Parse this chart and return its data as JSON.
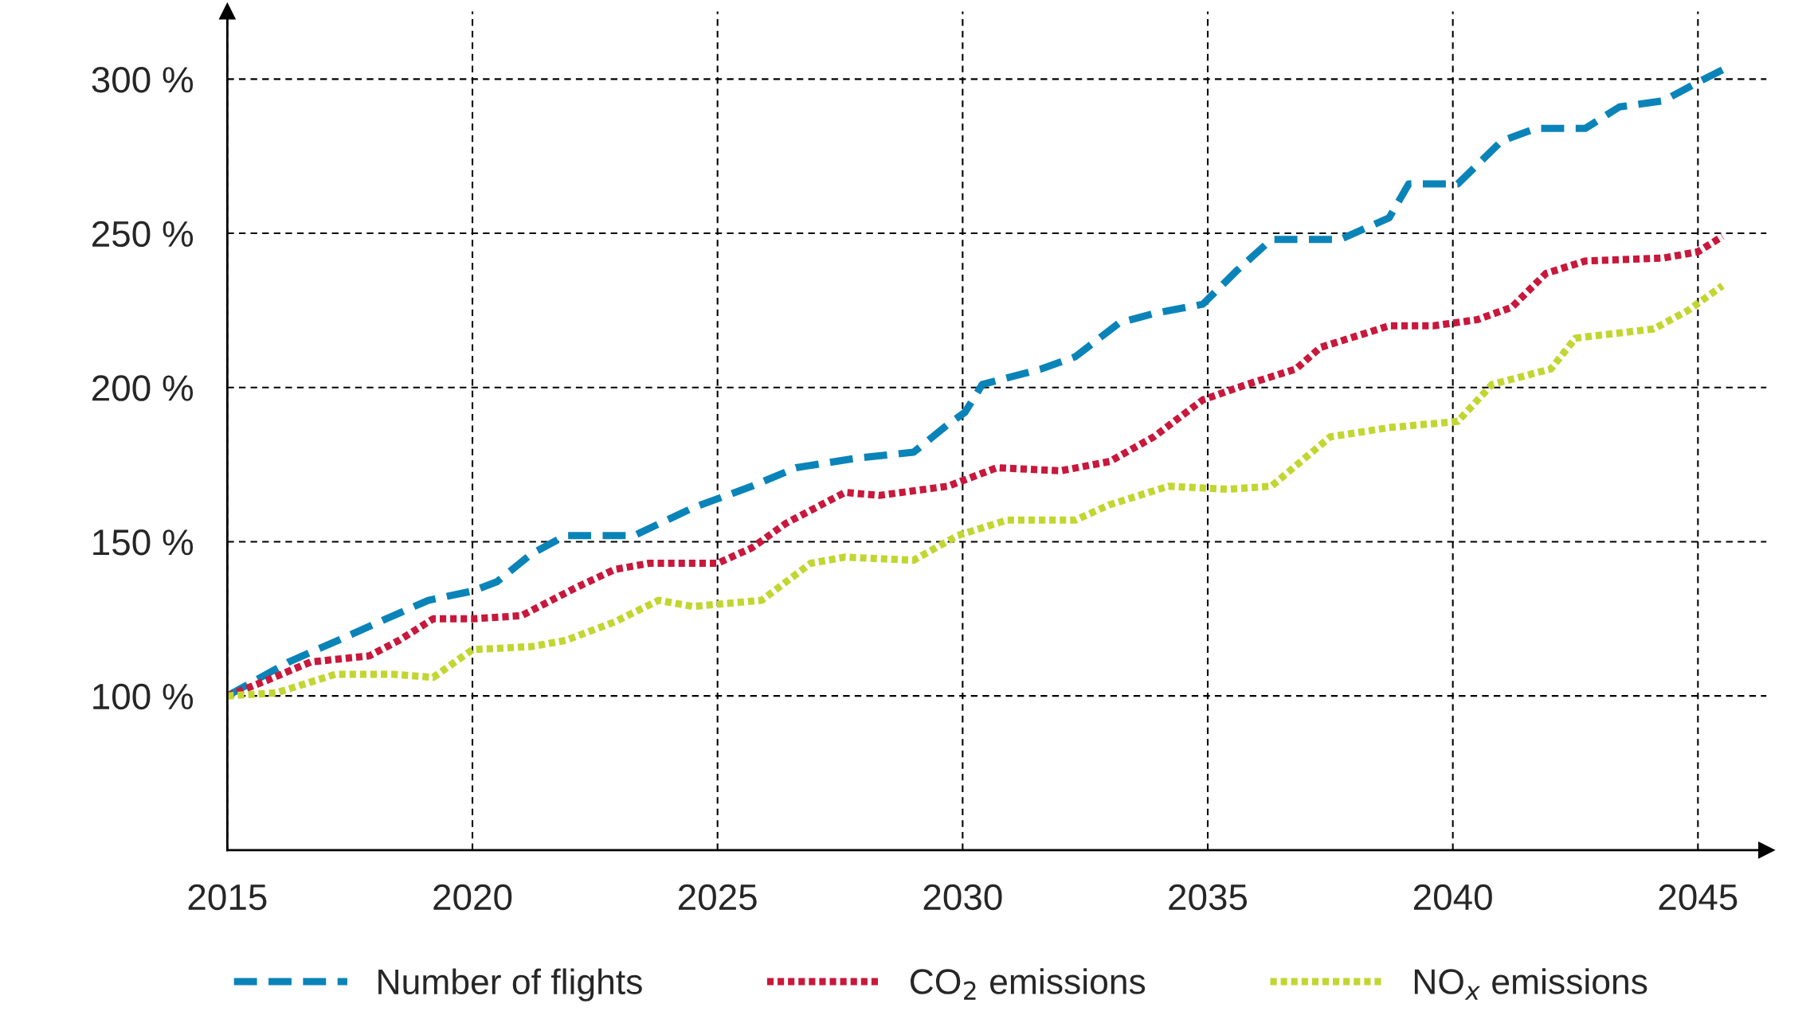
{
  "chart_data": {
    "type": "line",
    "xlim": [
      2015,
      2046.4
    ],
    "ylim": [
      50,
      322
    ],
    "xticks": [
      2015,
      2020,
      2025,
      2030,
      2035,
      2040,
      2045
    ],
    "yticks": [
      {
        "value": 100,
        "label": "100 %"
      },
      {
        "value": 150,
        "label": "150 %"
      },
      {
        "value": 200,
        "label": "200 %"
      },
      {
        "value": 250,
        "label": "250 %"
      },
      {
        "value": 300,
        "label": "300 %"
      }
    ],
    "grid": true,
    "legend": "bottom",
    "marker": "none",
    "series": [
      {
        "name": "Number of flights",
        "color": "#0a84b8",
        "line_style": "dashed",
        "x": [
          2015,
          2016.25,
          2017.4,
          2018.1,
          2019.1,
          2020,
          2020.5,
          2021.2,
          2021.9,
          2023.3,
          2024.5,
          2025.7,
          2026.6,
          2027.8,
          2029,
          2029.7,
          2030.05,
          2030.4,
          2031.6,
          2032.3,
          2033.2,
          2033.9,
          2034.9,
          2035.6,
          2036.3,
          2037.7,
          2038.7,
          2039.1,
          2040.1,
          2041,
          2041.7,
          2042.7,
          2043.4,
          2044.3,
          2045,
          2045.5
        ],
        "values": [
          100,
          111,
          119,
          124,
          131,
          134,
          137,
          146,
          152,
          152,
          161,
          168,
          174,
          177,
          179,
          188,
          192,
          201,
          206,
          210,
          221,
          224,
          227,
          238,
          248,
          248,
          255,
          266,
          266,
          280,
          284,
          284,
          291,
          293,
          299,
          303
        ]
      },
      {
        "name": "CO$_{2}$ emissions",
        "color": "#c8183c",
        "line_style": "dotted",
        "x": [
          2015,
          2015.8,
          2016.7,
          2017.9,
          2018.5,
          2019.2,
          2020,
          2021,
          2022.1,
          2022.9,
          2023.6,
          2025,
          2025.7,
          2026.4,
          2027.6,
          2028.3,
          2029.7,
          2030.7,
          2032,
          2033,
          2033.9,
          2034.9,
          2035.8,
          2036.8,
          2037.3,
          2038.7,
          2039.6,
          2040.5,
          2041.2,
          2041.9,
          2042.7,
          2044.3,
          2045,
          2045.5
        ],
        "values": [
          100,
          105,
          111,
          113,
          118,
          125,
          125,
          126,
          135,
          141,
          143,
          143,
          148,
          156,
          166,
          165,
          168,
          174,
          173,
          176,
          184,
          196,
          201,
          206,
          213,
          220,
          220,
          222,
          226,
          237,
          241,
          242,
          244,
          249
        ]
      },
      {
        "name": "NO$_{x}$ emissions",
        "color": "#c2d631",
        "line_style": "dotted",
        "x": [
          2015,
          2016,
          2017.2,
          2018.4,
          2019.2,
          2020,
          2021.2,
          2021.9,
          2022.9,
          2023.8,
          2024.5,
          2025.9,
          2026.9,
          2027.6,
          2029,
          2029.9,
          2030.9,
          2032.3,
          2033,
          2034.2,
          2035.4,
          2036.3,
          2037.5,
          2038.7,
          2040.1,
          2040.8,
          2042,
          2042.5,
          2044.1,
          2044.8,
          2045.5
        ],
        "values": [
          100,
          101,
          107,
          107,
          106,
          115,
          116,
          118,
          124,
          131,
          129,
          131,
          143,
          145,
          144,
          152,
          157,
          157,
          162,
          168,
          167,
          168,
          184,
          187,
          189,
          201,
          206,
          216,
          219,
          225,
          233
        ]
      }
    ]
  }
}
